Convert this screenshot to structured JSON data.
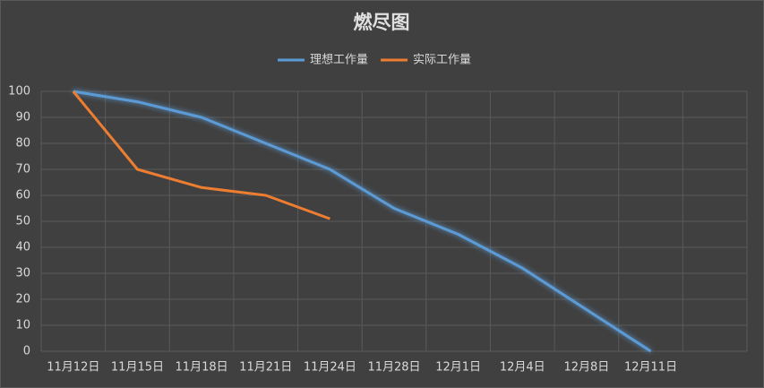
{
  "chart_data": {
    "type": "line",
    "title": "燃尽图",
    "categories": [
      "11月12日",
      "11月15日",
      "11月18日",
      "11月21日",
      "11月24日",
      "11月28日",
      "12月1日",
      "12月4日",
      "12月8日",
      "12月11日",
      null
    ],
    "series": [
      {
        "name": "理想工作量",
        "color": "#5b9bd5",
        "values": [
          100,
          96,
          90,
          80,
          70,
          55,
          45,
          32,
          16,
          0,
          null
        ]
      },
      {
        "name": "实际工作量",
        "color": "#ed7d31",
        "values": [
          100,
          70,
          63,
          60,
          51,
          null,
          null,
          null,
          null,
          null,
          null
        ]
      }
    ],
    "ylim": [
      0,
      100
    ],
    "yticks": [
      0,
      10,
      20,
      30,
      40,
      50,
      60,
      70,
      80,
      90,
      100
    ],
    "grid": true,
    "legend": "top"
  }
}
